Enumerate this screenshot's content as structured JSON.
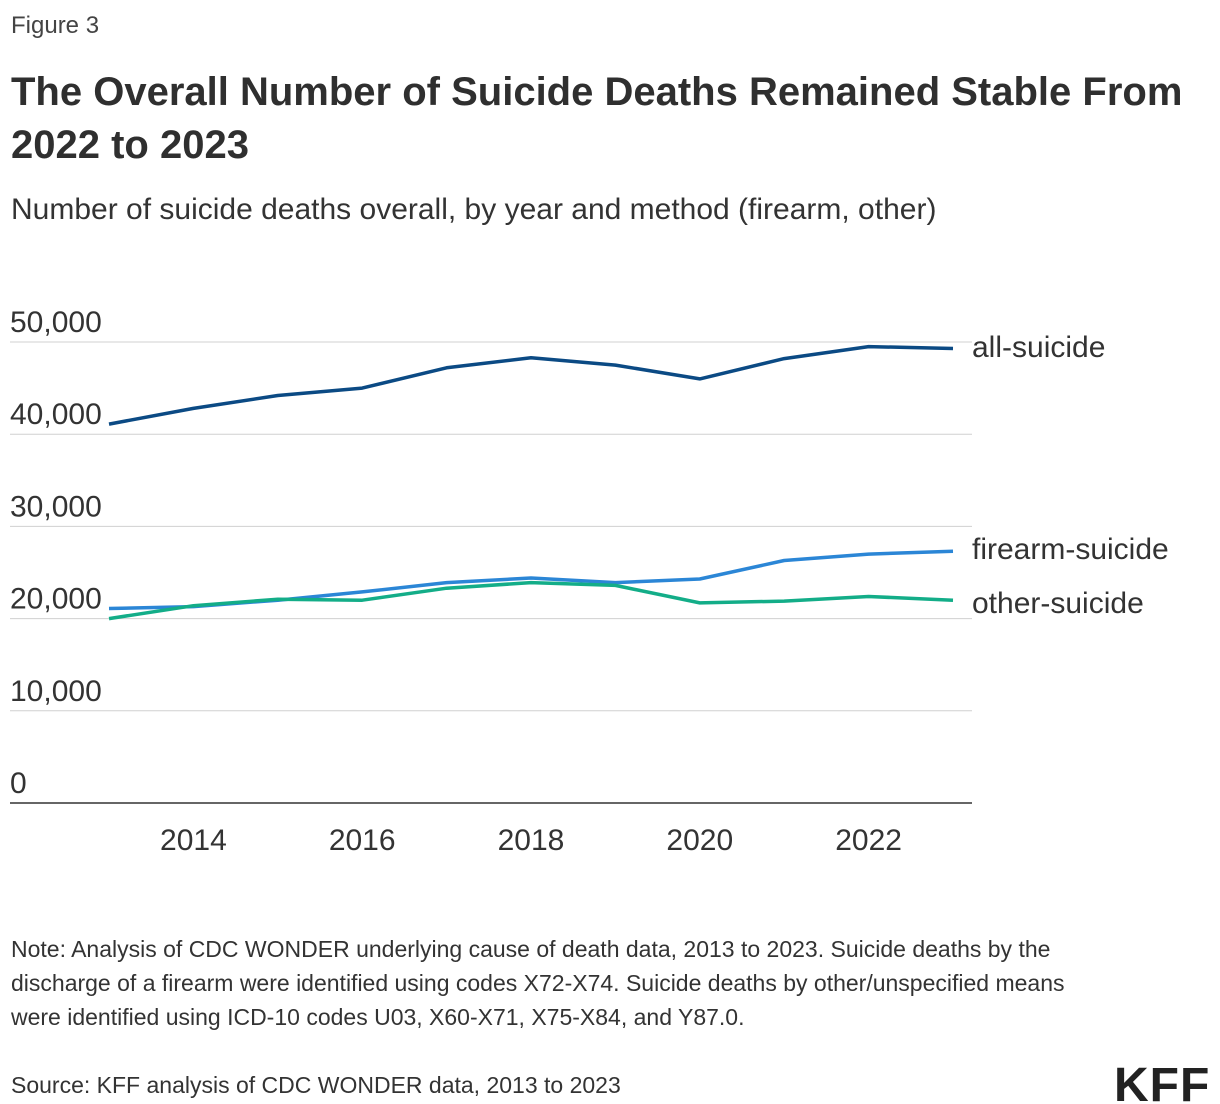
{
  "chart_data": {
    "type": "line",
    "figure_label": "Figure 3",
    "title": "The Overall Number of Suicide Deaths Remained Stable From 2022 to 2023",
    "subtitle": "Number of suicide deaths overall, by year and method (firearm, other)",
    "x": [
      2013,
      2014,
      2015,
      2016,
      2017,
      2018,
      2019,
      2020,
      2021,
      2022,
      2023
    ],
    "series": [
      {
        "name": "all-suicide",
        "color": "#0b4a84",
        "values": [
          41100,
          42800,
          44200,
          45000,
          47200,
          48300,
          47500,
          46000,
          48200,
          49500,
          49300
        ]
      },
      {
        "name": "firearm-suicide",
        "color": "#2b86d6",
        "values": [
          21100,
          21300,
          22000,
          22900,
          23900,
          24400,
          23900,
          24300,
          26300,
          27000,
          27300
        ]
      },
      {
        "name": "other-suicide",
        "color": "#13ad88",
        "values": [
          20000,
          21400,
          22100,
          22000,
          23300,
          23900,
          23600,
          21700,
          21900,
          22400,
          22000
        ]
      }
    ],
    "xlim": [
      2013,
      2023
    ],
    "xticks": [
      2014,
      2016,
      2018,
      2020,
      2022
    ],
    "ylim": [
      0,
      50000
    ],
    "yticks": [
      0,
      {
        "value": 10000,
        "label": "10,000"
      },
      {
        "value": 20000,
        "label": "20,000"
      },
      {
        "value": 30000,
        "label": "30,000"
      },
      {
        "value": 40000,
        "label": "40,000"
      },
      {
        "value": 50000,
        "label": "50,000"
      }
    ],
    "grid": true,
    "note": "Note: Analysis of CDC WONDER underlying cause of death data, 2013 to 2023. Suicide deaths by the discharge of a firearm were identified using codes X72-X74. Suicide deaths by other/unspecified means were identified using ICD-10 codes U03, X60-X71, X75-X84, and Y87.0.",
    "source": "Source: KFF analysis of CDC WONDER data, 2013 to 2023",
    "logo": "KFF"
  }
}
